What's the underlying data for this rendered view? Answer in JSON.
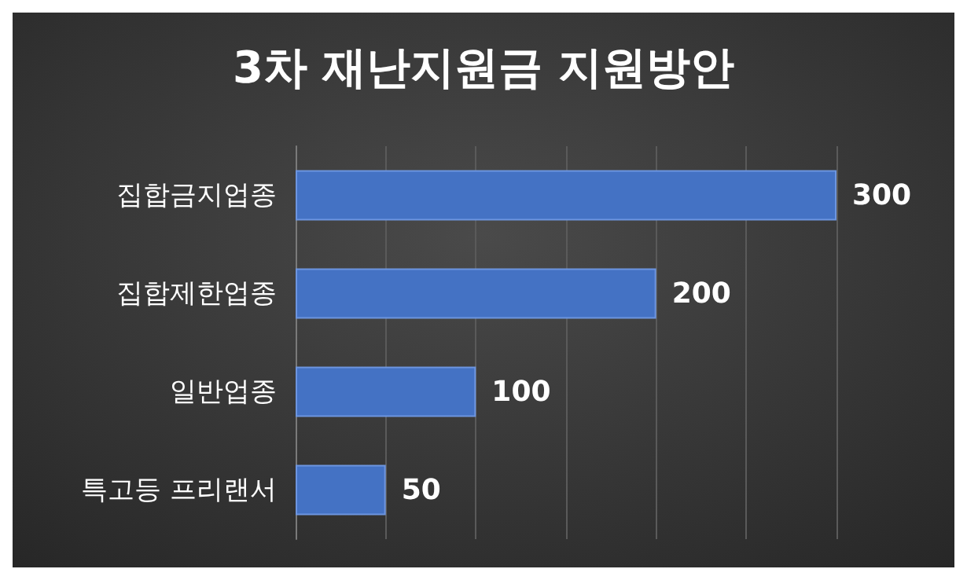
{
  "chart_data": {
    "type": "bar",
    "orientation": "horizontal",
    "title": "3차 재난지원금 지원방안",
    "categories": [
      "집합금지업종",
      "집합제한업종",
      "일반업종",
      "특고등 프리랜서"
    ],
    "values": [
      300,
      200,
      100,
      50
    ],
    "color": "#4472c4",
    "xlim": [
      0,
      300
    ],
    "xticks": [
      {
        "value": 0,
        "label": null
      },
      {
        "value": 50,
        "label": null
      },
      {
        "value": 100,
        "label": null
      },
      {
        "value": 150,
        "label": null
      },
      {
        "value": 200,
        "label": null
      },
      {
        "value": 250,
        "label": null
      },
      {
        "value": 300,
        "label": null
      }
    ],
    "grid": "x",
    "tick_labels": "y",
    "data_labels": true
  }
}
